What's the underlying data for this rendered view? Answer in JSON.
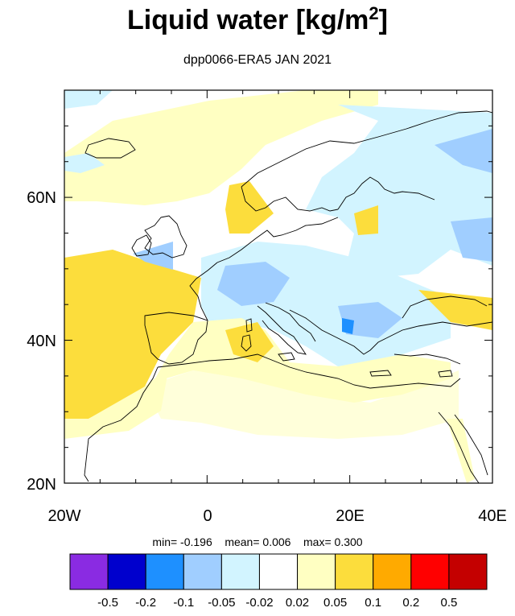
{
  "title": "Liquid water  [kg/m",
  "title_sup": "2",
  "title_end": "]",
  "subtitle": "dpp0066-ERA5 JAN 2021",
  "axes": {
    "x_ticks": [
      "20W",
      "0",
      "20E",
      "40E"
    ],
    "y_ticks": [
      "60N",
      "40N",
      "20N"
    ]
  },
  "stats": {
    "min_label": "min=",
    "min": "-0.196",
    "mean_label": "mean=",
    "mean": "0.006",
    "max_label": "max=",
    "max": "0.300"
  },
  "colorbar": {
    "colors": [
      "#8a2be2",
      "#0000cd",
      "#1e90ff",
      "#a0ceff",
      "#d2f4ff",
      "#ffffff",
      "#ffffc2",
      "#fcdd3c",
      "#ffaa00",
      "#ff0000",
      "#c40000"
    ],
    "labels": [
      "-0.5",
      "-0.2",
      "-0.1",
      "-0.05",
      "-0.02",
      "0.02",
      "0.05",
      "0.1",
      "0.2",
      "0.5"
    ]
  }
}
